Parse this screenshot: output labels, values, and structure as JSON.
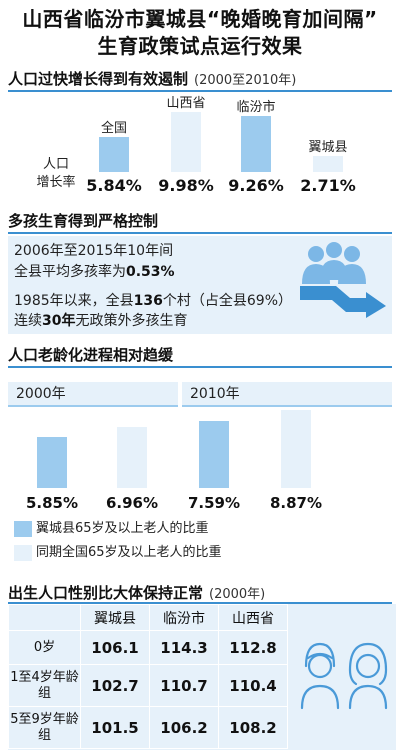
{
  "title": {
    "line1": "山西省临汾市翼城县“晚婚晚育加间隔”",
    "line2": "生育政策试点运行效果"
  },
  "section1": {
    "heading": "人口过快增长得到有效遏制",
    "subheading": "(2000至2010年)",
    "y_label_1": "人口",
    "y_label_2": "增长率",
    "colors": {
      "highlight": "#9ccbee",
      "light": "#e6f1fa"
    }
  },
  "section2": {
    "heading": "多孩生育得到严格控制",
    "line1": "2006年至2015年10年间",
    "line2_pre": "全县平均多孩率为",
    "line2_val": "0.53%",
    "line3_pre": "1985年以来，全县",
    "line3_val": "136",
    "line3_post": "个村（占全县69%）",
    "line4_pre": "连续",
    "line4_val": "30年",
    "line4_post": "无政策外多孩生育"
  },
  "section3": {
    "heading": "人口老龄化进程相对趋缓",
    "year_2000": "2000年",
    "year_2010": "2010年",
    "legend_dark": "翼城县65岁及以上老人的比重",
    "legend_light": "同期全国65岁及以上老人的比重"
  },
  "section4": {
    "heading": "出生人口性别比大体保持正常",
    "subheading": "(2000年)",
    "columns": [
      "",
      "翼城县",
      "临汾市",
      "山西省"
    ],
    "rows": [
      {
        "label": "0岁",
        "values": [
          "106.1",
          "114.3",
          "112.8"
        ]
      },
      {
        "label": "1至4岁年龄组",
        "values": [
          "102.7",
          "110.7",
          "110.4"
        ]
      },
      {
        "label": "5至9岁年龄组",
        "values": [
          "101.5",
          "106.2",
          "108.2"
        ]
      }
    ]
  },
  "chart_data": [
    {
      "type": "bar",
      "title": "人口过快增长得到有效遏制",
      "subtitle": "(2000至2010年)",
      "ylabel": "人口增长率",
      "categories": [
        "全国",
        "山西省",
        "临汾市",
        "翼城县"
      ],
      "values": [
        5.84,
        9.98,
        9.26,
        2.71
      ],
      "value_labels": [
        "5.84%",
        "9.98%",
        "9.26%",
        "2.71%"
      ],
      "ylim": [
        0,
        10
      ],
      "highlight": [
        true,
        false,
        true,
        false
      ]
    },
    {
      "type": "bar",
      "title": "人口老龄化进程相对趋缓",
      "categories": [
        "2000年",
        "2010年"
      ],
      "series": [
        {
          "name": "翼城县65岁及以上老人的比重",
          "values": [
            5.85,
            7.59
          ],
          "labels": [
            "5.85%",
            "7.59%"
          ]
        },
        {
          "name": "同期全国65岁及以上老人的比重",
          "values": [
            6.96,
            8.87
          ],
          "labels": [
            "6.96%",
            "8.87%"
          ]
        }
      ],
      "ylim": [
        0,
        10
      ],
      "legend": "bottom"
    }
  ]
}
